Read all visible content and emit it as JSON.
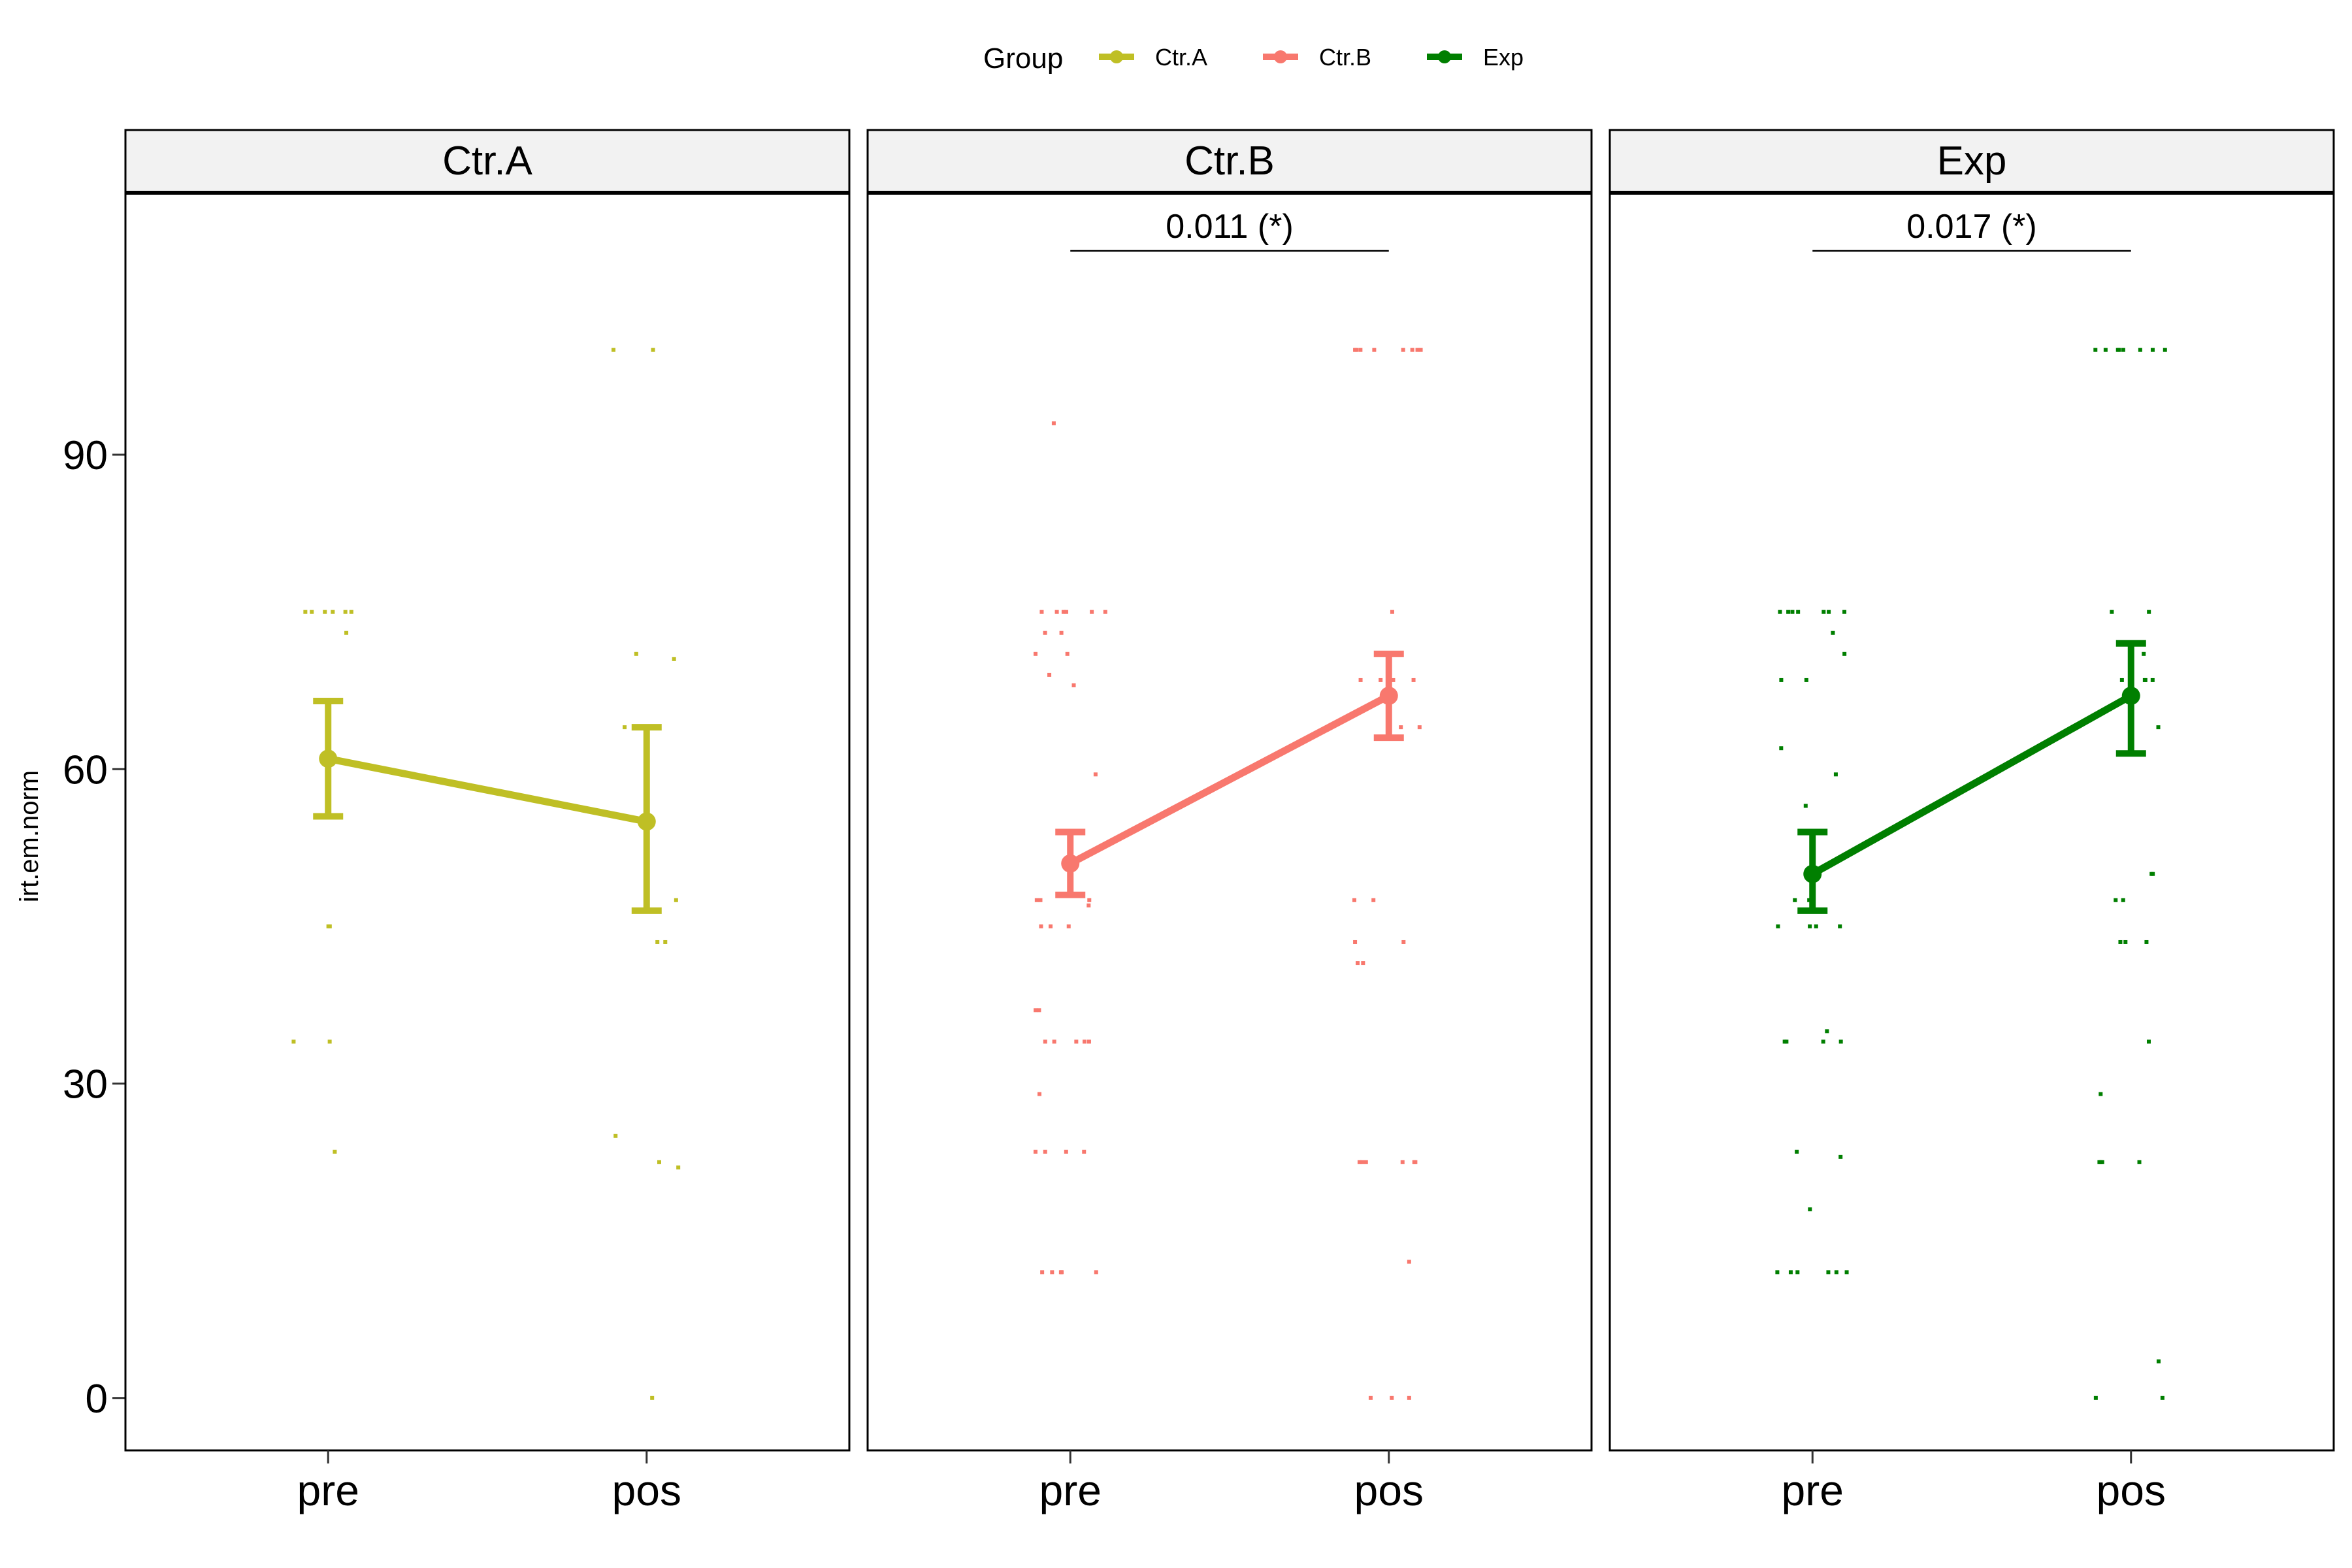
{
  "legend": {
    "title": "Group",
    "items": [
      {
        "label": "Ctr.A",
        "color": "#BFBF25"
      },
      {
        "label": "Ctr.B",
        "color": "#F8786E"
      },
      {
        "label": "Exp",
        "color": "#007F00"
      }
    ]
  },
  "chart_data": {
    "type": "line",
    "ylabel": "irt.em.norm",
    "xlabel": "",
    "ylim": [
      -5,
      115
    ],
    "yticks": [
      0,
      30,
      60,
      90
    ],
    "categories": [
      "pre",
      "pos"
    ],
    "grid": false,
    "legend_position": "top",
    "facets": [
      {
        "name": "Ctr.A",
        "color": "#BFBF25",
        "mean": [
          61,
          55
        ],
        "ci_low": [
          55.5,
          46.5
        ],
        "ci_high": [
          66.5,
          64
        ],
        "significance": "",
        "points": {
          "pre": [
            75,
            75,
            75,
            75,
            75,
            75,
            73,
            45,
            45,
            34,
            34,
            23.5
          ],
          "pos": [
            100,
            100,
            71,
            70.5,
            64,
            47.5,
            43.5,
            43.5,
            25,
            22.5,
            22,
            0
          ]
        }
      },
      {
        "name": "Ctr.B",
        "color": "#F8786E",
        "mean": [
          51,
          67
        ],
        "ci_low": [
          48,
          63
        ],
        "ci_high": [
          54,
          71
        ],
        "significance": "0.011 (*)",
        "points": {
          "pre": [
            93,
            75,
            75,
            75,
            75,
            75,
            75,
            73,
            73,
            71,
            71,
            69,
            68,
            59.5,
            47.5,
            47.5,
            47.5,
            47,
            45,
            45,
            45,
            37,
            37,
            34,
            34,
            34,
            34,
            34,
            29,
            23.5,
            23.5,
            23.5,
            23.5,
            12,
            12,
            12,
            12,
            12
          ],
          "pos": [
            100,
            100,
            100,
            100,
            100,
            100,
            100,
            100,
            75,
            68.5,
            68.5,
            68.5,
            68.5,
            68.5,
            64,
            64,
            64,
            47.5,
            47.5,
            43.5,
            43.5,
            41.5,
            41.5,
            22.5,
            22.5,
            22.5,
            22.5,
            22.5,
            22.5,
            13,
            0,
            0,
            0
          ]
        }
      },
      {
        "name": "Exp",
        "color": "#007F00",
        "mean": [
          50,
          67
        ],
        "ci_low": [
          46.5,
          61.5
        ],
        "ci_high": [
          54,
          72
        ],
        "significance": "0.017 (*)",
        "points": {
          "pre": [
            75,
            75,
            75,
            75,
            75,
            75,
            75,
            73,
            71,
            68.5,
            68.5,
            62,
            59.5,
            56.5,
            47.5,
            47.5,
            45,
            45,
            45,
            45,
            35,
            34,
            34,
            34,
            34,
            23.5,
            23,
            18,
            12,
            12,
            12,
            12,
            12,
            12
          ],
          "pos": [
            100,
            100,
            100,
            100,
            100,
            100,
            100,
            100,
            75,
            75,
            71,
            68.5,
            68.5,
            68.5,
            68.5,
            64,
            50,
            50,
            47.5,
            47.5,
            43.5,
            43.5,
            43.5,
            34,
            29,
            22.5,
            22.5,
            22.5,
            22.5,
            3.5,
            0,
            0
          ]
        }
      }
    ]
  }
}
